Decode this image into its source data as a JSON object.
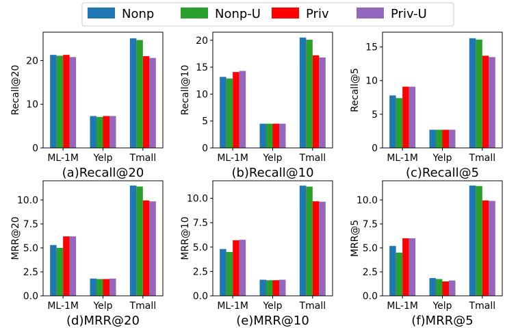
{
  "legend": {
    "placement": "top-center",
    "entries": [
      {
        "name": "Nonp",
        "color": "#1f77b4"
      },
      {
        "name": "Nonp-U",
        "color": "#2ca02c"
      },
      {
        "name": "Priv",
        "color": "#ff0000"
      },
      {
        "name": "Priv-U",
        "color": "#9467bd"
      }
    ]
  },
  "chart_data": [
    {
      "type": "bar",
      "title": "(a)Recall@20",
      "ylabel": "Recall@20",
      "categories": [
        "ML-1M",
        "Yelp",
        "Tmall"
      ],
      "ylim": [
        0,
        26.5
      ],
      "yticks": [
        0,
        10,
        20
      ],
      "ytick_labels": [
        "0",
        "10",
        "20"
      ],
      "series": [
        {
          "name": "Nonp",
          "values": [
            21.3,
            7.3,
            25.1
          ]
        },
        {
          "name": "Nonp-U",
          "values": [
            21.1,
            7.1,
            24.7
          ]
        },
        {
          "name": "Priv",
          "values": [
            21.3,
            7.3,
            21.0
          ]
        },
        {
          "name": "Priv-U",
          "values": [
            20.8,
            7.3,
            20.6
          ]
        }
      ]
    },
    {
      "type": "bar",
      "title": "(b)Recall@10",
      "ylabel": "Recall@10",
      "categories": [
        "ML-1M",
        "Yelp",
        "Tmall"
      ],
      "ylim": [
        0,
        21.5
      ],
      "yticks": [
        0,
        5,
        10,
        15,
        20
      ],
      "ytick_labels": [
        "0",
        "5",
        "10",
        "15",
        "20"
      ],
      "series": [
        {
          "name": "Nonp",
          "values": [
            13.2,
            4.5,
            20.5
          ]
        },
        {
          "name": "Nonp-U",
          "values": [
            12.9,
            4.5,
            20.1
          ]
        },
        {
          "name": "Priv",
          "values": [
            14.1,
            4.5,
            17.2
          ]
        },
        {
          "name": "Priv-U",
          "values": [
            14.3,
            4.5,
            16.8
          ]
        }
      ]
    },
    {
      "type": "bar",
      "title": "(c)Recall@5",
      "ylabel": "Recall@5",
      "categories": [
        "ML-1M",
        "Yelp",
        "Tmall"
      ],
      "ylim": [
        0,
        17.2
      ],
      "yticks": [
        0,
        5,
        10,
        15
      ],
      "ytick_labels": [
        "0",
        "5",
        "10",
        "15"
      ],
      "series": [
        {
          "name": "Nonp",
          "values": [
            7.8,
            2.7,
            16.3
          ]
        },
        {
          "name": "Nonp-U",
          "values": [
            7.4,
            2.7,
            16.1
          ]
        },
        {
          "name": "Priv",
          "values": [
            9.1,
            2.7,
            13.7
          ]
        },
        {
          "name": "Priv-U",
          "values": [
            9.1,
            2.7,
            13.5
          ]
        }
      ]
    },
    {
      "type": "bar",
      "title": "(d)MRR@20",
      "ylabel": "MRR@20",
      "categories": [
        "ML-1M",
        "Yelp",
        "Tmall"
      ],
      "ylim": [
        0,
        12.0
      ],
      "yticks": [
        0,
        2.5,
        5,
        7.5,
        10
      ],
      "ytick_labels": [
        "0.0",
        "2.5",
        "5.0",
        "7.5",
        "10.0"
      ],
      "series": [
        {
          "name": "Nonp",
          "values": [
            5.3,
            1.8,
            11.5
          ]
        },
        {
          "name": "Nonp-U",
          "values": [
            5.0,
            1.75,
            11.4
          ]
        },
        {
          "name": "Priv",
          "values": [
            6.2,
            1.75,
            9.95
          ]
        },
        {
          "name": "Priv-U",
          "values": [
            6.2,
            1.8,
            9.85
          ]
        }
      ]
    },
    {
      "type": "bar",
      "title": "(e)MRR@10",
      "ylabel": "MRR@10",
      "categories": [
        "ML-1M",
        "Yelp",
        "Tmall"
      ],
      "ylim": [
        0,
        11.8
      ],
      "yticks": [
        0,
        2.5,
        5,
        7.5,
        10
      ],
      "ytick_labels": [
        "0.0",
        "2.5",
        "5.0",
        "7.5",
        "10.0"
      ],
      "series": [
        {
          "name": "Nonp",
          "values": [
            4.8,
            1.65,
            11.3
          ]
        },
        {
          "name": "Nonp-U",
          "values": [
            4.5,
            1.6,
            11.2
          ]
        },
        {
          "name": "Priv",
          "values": [
            5.7,
            1.6,
            9.7
          ]
        },
        {
          "name": "Priv-U",
          "values": [
            5.75,
            1.65,
            9.65
          ]
        }
      ]
    },
    {
      "type": "bar",
      "title": "(f)MRR@5",
      "ylabel": "MRR@5",
      "categories": [
        "ML-1M",
        "Yelp",
        "Tmall"
      ],
      "ylim": [
        0,
        12.0
      ],
      "yticks": [
        0,
        2.5,
        5,
        7.5,
        10
      ],
      "ytick_labels": [
        "0.0",
        "2.5",
        "5.0",
        "7.5",
        "10.0"
      ],
      "series": [
        {
          "name": "Nonp",
          "values": [
            5.2,
            1.85,
            11.5
          ]
        },
        {
          "name": "Nonp-U",
          "values": [
            4.5,
            1.75,
            11.45
          ]
        },
        {
          "name": "Priv",
          "values": [
            6.0,
            1.5,
            9.95
          ]
        },
        {
          "name": "Priv-U",
          "values": [
            6.0,
            1.6,
            9.9
          ]
        }
      ]
    }
  ]
}
